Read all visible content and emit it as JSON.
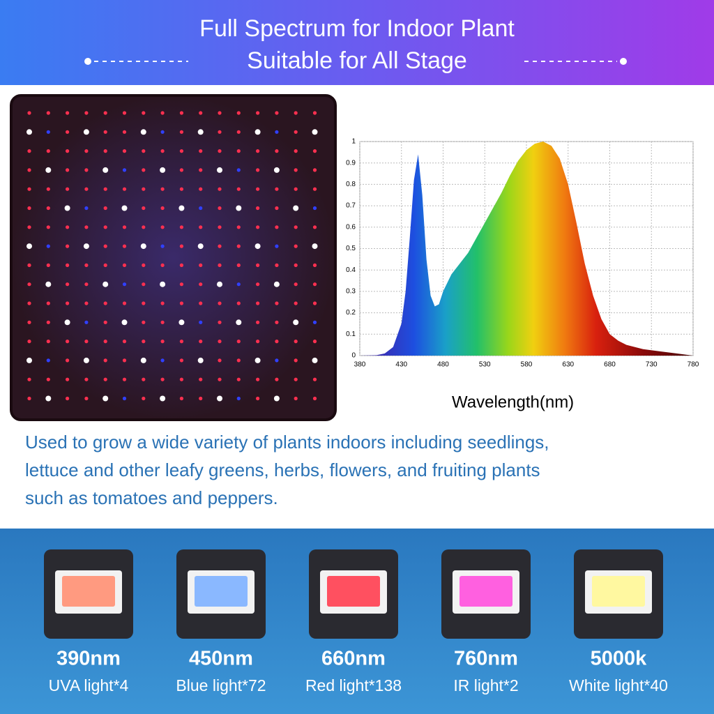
{
  "header": {
    "title": [
      "Full Spectrum for Indoor Plant",
      "Suitable for All Stage"
    ]
  },
  "chart_data": {
    "type": "area",
    "xlabel": "Wavelength(nm)",
    "x": [
      380,
      400,
      410,
      420,
      430,
      435,
      440,
      445,
      450,
      455,
      460,
      465,
      470,
      475,
      480,
      490,
      500,
      510,
      520,
      530,
      540,
      550,
      560,
      570,
      580,
      590,
      600,
      610,
      620,
      630,
      640,
      650,
      660,
      670,
      680,
      690,
      700,
      720,
      740,
      760,
      780
    ],
    "series": [
      {
        "values": [
          0,
          0.002,
          0.01,
          0.04,
          0.15,
          0.3,
          0.55,
          0.82,
          0.94,
          0.75,
          0.45,
          0.28,
          0.23,
          0.24,
          0.3,
          0.38,
          0.43,
          0.48,
          0.55,
          0.62,
          0.69,
          0.76,
          0.84,
          0.91,
          0.96,
          0.99,
          1.0,
          0.98,
          0.92,
          0.8,
          0.62,
          0.43,
          0.28,
          0.17,
          0.1,
          0.07,
          0.05,
          0.03,
          0.02,
          0.01,
          0
        ]
      }
    ],
    "xlim": [
      380,
      780
    ],
    "xticks": [
      380,
      430,
      480,
      530,
      580,
      630,
      680,
      730,
      780
    ],
    "ylim": [
      0,
      1
    ],
    "yticks": [
      0,
      0.1,
      0.2,
      0.3,
      0.4,
      0.5,
      0.6,
      0.7,
      0.8,
      0.9,
      1
    ],
    "grid": true
  },
  "description": [
    "Used to grow a wide variety of plants indoors including seedlings,",
    "lettuce and other leafy greens, herbs, flowers, and fruiting plants",
    "such as tomatoes and peppers."
  ],
  "leds": [
    {
      "wavelength": "390nm",
      "label": "UVA light*4"
    },
    {
      "wavelength": "450nm",
      "label": "Blue light*72"
    },
    {
      "wavelength": "660nm",
      "label": "Red light*138"
    },
    {
      "wavelength": "760nm",
      "label": "IR light*2"
    },
    {
      "wavelength": "5000k",
      "label": "White light*40"
    }
  ]
}
